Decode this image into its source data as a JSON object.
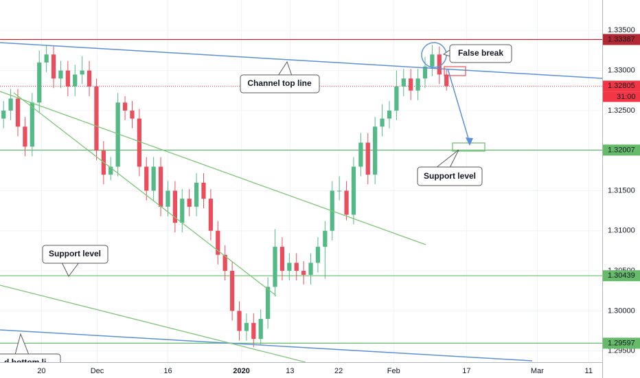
{
  "chart_data": {
    "type": "candlestick",
    "up_color": "#53b987",
    "down_color": "#eb4d5c",
    "grid": true,
    "x": [
      0,
      1,
      2,
      3,
      4,
      5,
      6,
      7,
      8,
      9,
      10,
      11,
      12,
      13,
      14,
      15,
      16,
      17,
      18,
      19,
      20,
      21,
      22,
      23,
      24,
      25,
      26,
      27,
      28,
      29,
      30,
      31,
      32,
      33,
      34,
      35,
      36,
      37,
      38,
      39,
      40,
      41,
      42,
      43,
      44,
      45,
      46,
      47,
      48,
      49,
      50,
      51,
      52,
      53,
      54,
      55,
      56,
      57,
      58,
      59,
      60,
      61,
      62
    ],
    "open": [
      1.324,
      1.325,
      1.3265,
      1.323,
      1.3205,
      1.326,
      1.331,
      1.332,
      1.329,
      1.33,
      1.328,
      1.3295,
      1.33,
      1.328,
      1.32,
      1.317,
      1.318,
      1.326,
      1.325,
      1.324,
      1.318,
      1.315,
      1.318,
      1.313,
      1.315,
      1.311,
      1.314,
      1.313,
      1.316,
      1.314,
      1.31,
      1.307,
      1.305,
      1.3,
      1.2975,
      1.2985,
      1.2965,
      1.299,
      1.303,
      1.308,
      1.305,
      1.306,
      1.305,
      1.3045,
      1.306,
      1.308,
      1.31,
      1.315,
      1.315,
      1.312,
      1.318,
      1.321,
      1.317,
      1.323,
      1.324,
      1.325,
      1.328,
      1.329,
      1.3275,
      1.329,
      1.3305,
      1.332,
      1.3295
    ],
    "high": [
      1.3262,
      1.3277,
      1.3277,
      1.3242,
      1.3272,
      1.3325,
      1.3332,
      1.333,
      1.3312,
      1.3312,
      1.3307,
      1.3318,
      1.3312,
      1.329,
      1.3212,
      1.3192,
      1.3272,
      1.3268,
      1.3262,
      1.3252,
      1.3192,
      1.3192,
      1.3192,
      1.3162,
      1.3162,
      1.3152,
      1.3152,
      1.3172,
      1.3172,
      1.3152,
      1.3112,
      1.3082,
      1.3062,
      1.3012,
      1.2997,
      1.2997,
      1.3002,
      1.3042,
      1.3102,
      1.3092,
      1.3072,
      1.3072,
      1.3062,
      1.3072,
      1.3092,
      1.3112,
      1.3162,
      1.3168,
      1.3162,
      1.3192,
      1.3222,
      1.3222,
      1.3242,
      1.3258,
      1.3262,
      1.33,
      1.3302,
      1.3302,
      1.3302,
      1.3317,
      1.3332,
      1.333,
      1.3302
    ],
    "low": [
      1.3228,
      1.3238,
      1.3218,
      1.3193,
      1.3193,
      1.3248,
      1.3298,
      1.3278,
      1.3278,
      1.3268,
      1.3268,
      1.3283,
      1.3268,
      1.3188,
      1.3158,
      1.3163,
      1.3168,
      1.3238,
      1.3228,
      1.3168,
      1.3138,
      1.3138,
      1.3118,
      1.3118,
      1.3098,
      1.3098,
      1.3118,
      1.3118,
      1.3128,
      1.3088,
      1.3058,
      1.3038,
      1.2988,
      1.2963,
      1.2963,
      1.2955,
      1.2958,
      1.2978,
      1.3018,
      1.3038,
      1.3038,
      1.3038,
      1.3033,
      1.3033,
      1.3048,
      1.304,
      1.3088,
      1.3138,
      1.3113,
      1.3108,
      1.3168,
      1.3158,
      1.3158,
      1.3218,
      1.3228,
      1.3238,
      1.3268,
      1.3263,
      1.3263,
      1.3278,
      1.3293,
      1.3283,
      1.3275
    ],
    "close": [
      1.325,
      1.3265,
      1.323,
      1.3205,
      1.326,
      1.331,
      1.332,
      1.329,
      1.33,
      1.328,
      1.3295,
      1.33,
      1.328,
      1.32,
      1.317,
      1.318,
      1.326,
      1.325,
      1.324,
      1.318,
      1.315,
      1.318,
      1.313,
      1.315,
      1.311,
      1.314,
      1.313,
      1.316,
      1.314,
      1.31,
      1.307,
      1.305,
      1.3,
      1.2975,
      1.2985,
      1.2965,
      1.299,
      1.303,
      1.308,
      1.305,
      1.306,
      1.305,
      1.3045,
      1.306,
      1.308,
      1.31,
      1.315,
      1.315,
      1.312,
      1.318,
      1.321,
      1.317,
      1.323,
      1.324,
      1.325,
      1.328,
      1.329,
      1.3275,
      1.329,
      1.3305,
      1.332,
      1.3295,
      1.32805
    ],
    "xlim": [
      -0.5,
      83.8
    ],
    "ylim": [
      1.2936,
      1.3388
    ],
    "xticks": [
      {
        "value": 5.3,
        "label": "20"
      },
      {
        "value": 13.1,
        "label": "Dec"
      },
      {
        "value": 23.0,
        "label": "16"
      },
      {
        "value": 33.3,
        "label": "2020"
      },
      {
        "value": 40.1,
        "label": "13"
      },
      {
        "value": 46.9,
        "label": "22"
      },
      {
        "value": 54.6,
        "label": "Feb"
      },
      {
        "value": 64.8,
        "label": "17"
      },
      {
        "value": 74.7,
        "label": "Mar"
      },
      {
        "value": 81.9,
        "label": "11"
      }
    ],
    "yticks": [
      {
        "value": 1.295,
        "label": "1.29500"
      },
      {
        "value": 1.3,
        "label": "1.30000"
      },
      {
        "value": 1.305,
        "label": "1.30500"
      },
      {
        "value": 1.31,
        "label": "1.31000"
      },
      {
        "value": 1.315,
        "label": "1.31500"
      },
      {
        "value": 1.32,
        "label": "1.32000"
      },
      {
        "value": 1.325,
        "label": "1.32500"
      },
      {
        "value": 1.33,
        "label": "1.33000"
      },
      {
        "value": 1.335,
        "label": "1.33500"
      }
    ],
    "levels": [
      {
        "value": 1.33387,
        "color": "#b22833",
        "style": "solid"
      },
      {
        "value": 1.32805,
        "color": "#f23645",
        "style": "dotted"
      },
      {
        "value": 1.32007,
        "color": "#66bb6a",
        "style": "solid"
      },
      {
        "value": 1.30439,
        "color": "#66bb6a",
        "style": "solid"
      },
      {
        "value": 1.29597,
        "color": "#66bb6a",
        "style": "solid"
      }
    ],
    "countdown": "31:00",
    "annotations": [
      "Channel top line",
      "False break",
      "Support level",
      "Support level",
      "d bottom li"
    ]
  }
}
